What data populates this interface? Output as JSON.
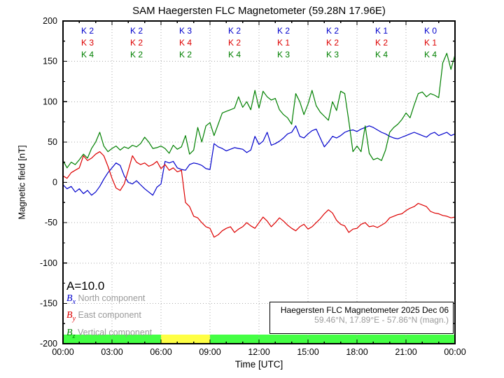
{
  "title": "SAM Haegersten FLC Magnetometer (59.28N 17.96E)",
  "annotation_a": "A=10.0",
  "colors": {
    "bx": "#0000cc",
    "by": "#dd0000",
    "bz": "#008000",
    "grid": "#aaaaaa",
    "bar_quiet": "#44ff44",
    "bar_active": "#ffff44",
    "muted_text": "#9a9a9a"
  },
  "legend": [
    {
      "symbol_main": "B",
      "symbol_sub": "x",
      "label": "North component"
    },
    {
      "symbol_main": "B",
      "symbol_sub": "y",
      "label": "East component"
    },
    {
      "symbol_main": "B",
      "symbol_sub": "z",
      "label": "Vertical component"
    }
  ],
  "infobox": {
    "line1": "Haegersten FLC Magnetometer 2025 Dec 06",
    "line2": "59.46°N, 17.89°E - 57.86°N (magn.)"
  },
  "chart_data": {
    "type": "line",
    "title": "SAM Haegersten FLC Magnetometer (59.28N 17.96E)",
    "xlabel": "Time [UTC]",
    "ylabel": "Magnetic field [nT]",
    "xlim_hours": [
      0,
      24
    ],
    "ylim": [
      -200,
      200
    ],
    "grid": "dotted",
    "xticks": {
      "hours": [
        0,
        3,
        6,
        9,
        12,
        15,
        18,
        21,
        24
      ],
      "labels": [
        "00:00",
        "03:00",
        "06:00",
        "09:00",
        "12:00",
        "15:00",
        "18:00",
        "21:00",
        "00:00"
      ]
    },
    "yticks": {
      "values": [
        200,
        150,
        100,
        50,
        0,
        -50,
        -100,
        -150,
        -200
      ],
      "labels": [
        "200",
        "150",
        "100",
        "50",
        "0",
        "-50",
        "-100",
        "-150",
        "-200"
      ]
    },
    "minor_ytick_step": 25,
    "minor_xtick_step_hours": 1,
    "x_start_hours": 0,
    "x_step_hours": 0.25,
    "series": [
      {
        "name": "Bx North component",
        "color": "#0000cc",
        "values": [
          -3,
          -8,
          -5,
          -12,
          -8,
          -14,
          -10,
          -16,
          -12,
          -5,
          4,
          12,
          18,
          24,
          21,
          8,
          0,
          -2,
          2,
          -3,
          -8,
          -12,
          -16,
          -6,
          -2,
          26,
          24,
          26,
          18,
          16,
          15,
          22,
          24,
          23,
          21,
          17,
          16,
          48,
          44,
          42,
          39,
          41,
          43,
          42,
          41,
          37,
          40,
          57,
          47,
          51,
          62,
          46,
          48,
          51,
          55,
          60,
          62,
          70,
          57,
          55,
          60,
          64,
          66,
          55,
          44,
          50,
          57,
          55,
          58,
          62,
          64,
          65,
          63,
          66,
          68,
          70,
          68,
          65,
          62,
          60,
          57,
          55,
          54,
          56,
          58,
          60,
          62,
          60,
          58,
          56,
          60,
          62,
          58,
          60,
          62,
          58,
          60
        ]
      },
      {
        "name": "By East component",
        "color": "#dd0000",
        "values": [
          8,
          5,
          12,
          15,
          18,
          33,
          27,
          30,
          35,
          38,
          33,
          20,
          5,
          -7,
          -10,
          -2,
          15,
          33,
          25,
          22,
          24,
          20,
          22,
          26,
          17,
          22,
          15,
          18,
          13,
          15,
          -25,
          -30,
          -42,
          -44,
          -50,
          -55,
          -57,
          -68,
          -65,
          -60,
          -57,
          -55,
          -62,
          -58,
          -55,
          -50,
          -54,
          -57,
          -50,
          -43,
          -48,
          -55,
          -50,
          -44,
          -48,
          -53,
          -57,
          -60,
          -55,
          -52,
          -58,
          -55,
          -50,
          -45,
          -39,
          -34,
          -38,
          -47,
          -52,
          -54,
          -62,
          -58,
          -57,
          -52,
          -50,
          -55,
          -54,
          -56,
          -53,
          -50,
          -44,
          -42,
          -40,
          -39,
          -35,
          -32,
          -30,
          -26,
          -28,
          -30,
          -36,
          -38,
          -39,
          -41,
          -42,
          -44,
          -43
        ]
      },
      {
        "name": "Bz Vertical component",
        "color": "#008000",
        "values": [
          27,
          18,
          25,
          22,
          28,
          35,
          30,
          42,
          50,
          62,
          45,
          38,
          42,
          45,
          40,
          44,
          42,
          46,
          44,
          48,
          56,
          50,
          42,
          43,
          45,
          42,
          36,
          46,
          41,
          44,
          58,
          35,
          40,
          68,
          50,
          70,
          74,
          58,
          72,
          86,
          88,
          90,
          92,
          106,
          93,
          100,
          90,
          114,
          92,
          113,
          106,
          102,
          104,
          90,
          84,
          80,
          72,
          110,
          100,
          84,
          97,
          114,
          95,
          87,
          82,
          77,
          100,
          89,
          113,
          110,
          76,
          38,
          45,
          38,
          70,
          36,
          28,
          30,
          27,
          40,
          62,
          68,
          72,
          78,
          86,
          80,
          96,
          110,
          112,
          106,
          110,
          108,
          105,
          148,
          160,
          140,
          158
        ]
      }
    ],
    "activity_bar": {
      "segments": [
        {
          "start_hour": 0,
          "end_hour": 6,
          "color": "#44ff44"
        },
        {
          "start_hour": 6,
          "end_hour": 9,
          "color": "#ffff44"
        },
        {
          "start_hour": 9,
          "end_hour": 24,
          "color": "#44ff44"
        }
      ]
    },
    "k_indices": {
      "interval_hours": 3,
      "row_order": [
        "Bx",
        "By",
        "Bz"
      ],
      "row_colors": [
        "#0000cc",
        "#dd0000",
        "#008000"
      ],
      "columns": [
        [
          "K 2",
          "K 3",
          "K 4"
        ],
        [
          "K 2",
          "K 2",
          "K 2"
        ],
        [
          "K 3",
          "K 4",
          "K 2"
        ],
        [
          "K 2",
          "K 2",
          "K 4"
        ],
        [
          "K 2",
          "K 1",
          "K 3"
        ],
        [
          "K 2",
          "K 2",
          "K 3"
        ],
        [
          "K 1",
          "K 2",
          "K 4"
        ],
        [
          "K 0",
          "K 1",
          "K 4"
        ]
      ]
    },
    "annotations": [
      "A=10.0"
    ]
  }
}
